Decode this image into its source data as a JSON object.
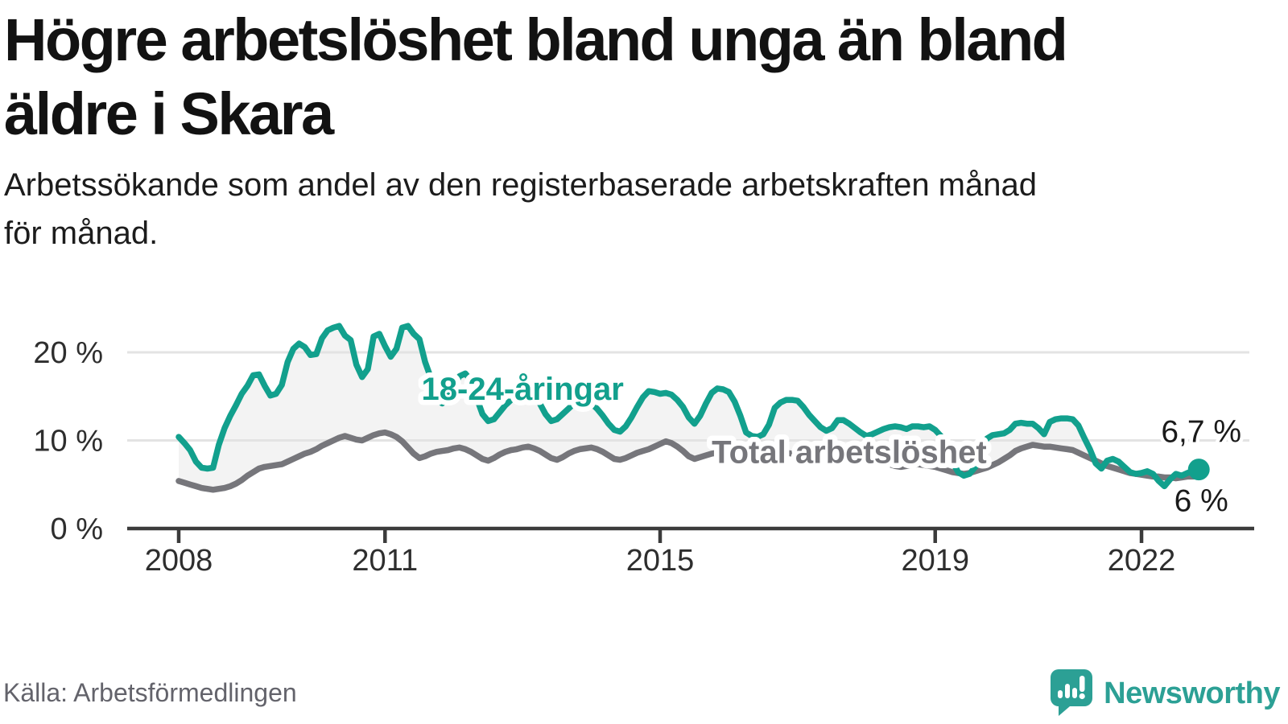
{
  "header": {
    "title_lines": [
      "Högre arbetslöshet bland unga än bland",
      "äldre i Skara"
    ],
    "subtitle_lines": [
      "Arbetssökande som andel av den registerbaserade arbetskraften månad",
      "för månad."
    ]
  },
  "footer": {
    "source": "Källa: Arbetsförmedlingen",
    "brand_name": "Newsworthy"
  },
  "chart_data": {
    "type": "line",
    "unit": "%",
    "frequency": "monthly",
    "x_start": "2008-01",
    "x_end": "2022-11",
    "grid": "horizontal-only",
    "palette": {
      "accent_teal": "#12a08d",
      "line_gray": "#76767b",
      "fill_between": "#f3f3f3"
    },
    "y_axis": {
      "ticks": [
        {
          "value": 0,
          "label": "0 %"
        },
        {
          "value": 10,
          "label": "10 %"
        },
        {
          "value": 20,
          "label": "20 %"
        }
      ],
      "range": [
        0,
        24
      ]
    },
    "x_axis": {
      "start_year": 2008,
      "ticks": [
        {
          "year": 2008,
          "label": "2008"
        },
        {
          "year": 2011,
          "label": "2011"
        },
        {
          "year": 2015,
          "label": "2015"
        },
        {
          "year": 2019,
          "label": "2019"
        },
        {
          "year": 2022,
          "label": "2022"
        }
      ]
    },
    "series": [
      {
        "name": "18-24-åringar",
        "color": "#12a08d",
        "end_marker": true,
        "values": [
          10.4,
          9.7,
          8.9,
          7.6,
          6.9,
          6.8,
          6.9,
          9.5,
          11.4,
          12.8,
          14.0,
          15.3,
          16.2,
          17.4,
          17.5,
          16.2,
          15.1,
          15.3,
          16.3,
          18.9,
          20.4,
          21.0,
          20.6,
          19.7,
          19.8,
          21.6,
          22.5,
          22.8,
          23.0,
          21.9,
          21.4,
          18.6,
          17.2,
          18.1,
          21.8,
          22.1,
          20.7,
          19.5,
          20.4,
          22.8,
          23.0,
          22.1,
          21.5,
          18.9,
          17.1,
          14.6,
          14.2,
          15.2,
          16.2,
          17.3,
          17.6,
          16.8,
          14.8,
          13.0,
          12.2,
          12.4,
          13.2,
          14.0,
          14.6,
          15.2,
          15.6,
          15.8,
          15.2,
          14.2,
          13.0,
          12.2,
          12.4,
          13.0,
          13.6,
          14.2,
          14.6,
          14.6,
          14.2,
          13.6,
          12.8,
          11.9,
          11.2,
          11.0,
          11.6,
          12.6,
          13.8,
          14.9,
          15.6,
          15.5,
          15.3,
          15.4,
          15.2,
          14.6,
          13.8,
          12.6,
          11.9,
          12.8,
          14.2,
          15.4,
          15.9,
          15.8,
          15.5,
          14.4,
          12.8,
          10.9,
          10.5,
          10.4,
          10.7,
          11.8,
          13.7,
          14.3,
          14.6,
          14.6,
          14.5,
          13.8,
          12.9,
          12.2,
          11.5,
          11.1,
          11.4,
          12.3,
          12.3,
          11.9,
          11.4,
          10.9,
          10.5,
          10.7,
          11.0,
          11.3,
          11.5,
          11.6,
          11.5,
          11.3,
          11.6,
          11.6,
          11.5,
          11.6,
          11.2,
          10.5,
          9.2,
          7.6,
          6.4,
          6.0,
          6.2,
          7.0,
          8.8,
          10.2,
          10.6,
          10.7,
          10.8,
          11.2,
          11.9,
          12.0,
          11.9,
          11.9,
          11.4,
          10.7,
          12.1,
          12.4,
          12.5,
          12.5,
          12.4,
          11.7,
          10.3,
          9.0,
          7.4,
          6.8,
          7.7,
          7.9,
          7.6,
          7.0,
          6.4,
          6.2,
          6.3,
          6.5,
          6.2,
          5.4,
          4.8,
          5.6,
          6.2,
          6.0,
          6.3,
          6.5,
          6.7
        ]
      },
      {
        "name": "Total arbetslöshet",
        "color": "#76767b",
        "end_marker": false,
        "values": [
          5.4,
          5.2,
          5.0,
          4.8,
          4.6,
          4.5,
          4.4,
          4.5,
          4.6,
          4.8,
          5.1,
          5.5,
          6.0,
          6.4,
          6.8,
          7.0,
          7.1,
          7.2,
          7.3,
          7.6,
          7.9,
          8.2,
          8.5,
          8.7,
          9.0,
          9.4,
          9.7,
          10.0,
          10.3,
          10.5,
          10.3,
          10.1,
          10.0,
          10.3,
          10.6,
          10.8,
          10.9,
          10.7,
          10.4,
          9.9,
          9.2,
          8.5,
          8.0,
          8.2,
          8.5,
          8.7,
          8.8,
          8.9,
          9.1,
          9.2,
          9.0,
          8.7,
          8.3,
          7.9,
          7.7,
          8.0,
          8.4,
          8.7,
          8.9,
          9.0,
          9.2,
          9.3,
          9.1,
          8.8,
          8.4,
          8.0,
          7.8,
          8.1,
          8.5,
          8.8,
          9.0,
          9.1,
          9.2,
          9.0,
          8.7,
          8.3,
          7.9,
          7.8,
          8.0,
          8.3,
          8.6,
          8.8,
          9.0,
          9.3,
          9.6,
          9.9,
          9.7,
          9.3,
          8.8,
          8.2,
          7.9,
          8.1,
          8.3,
          8.5,
          8.6,
          8.7,
          8.8,
          8.9,
          8.7,
          8.5,
          8.3,
          8.2,
          8.3,
          8.4,
          8.5,
          8.6,
          8.6,
          8.5,
          8.6,
          8.7,
          8.5,
          8.3,
          8.1,
          7.9,
          7.8,
          8.0,
          8.1,
          8.2,
          8.1,
          8.0,
          8.0,
          7.9,
          7.7,
          7.5,
          7.3,
          7.1,
          7.0,
          7.1,
          7.2,
          7.3,
          7.2,
          7.1,
          7.0,
          6.8,
          6.6,
          6.4,
          6.3,
          6.2,
          6.3,
          6.5,
          6.7,
          6.9,
          7.2,
          7.5,
          7.9,
          8.3,
          8.8,
          9.1,
          9.3,
          9.5,
          9.4,
          9.3,
          9.3,
          9.2,
          9.1,
          9.0,
          8.9,
          8.6,
          8.3,
          8.0,
          7.7,
          7.4,
          7.1,
          6.9,
          6.7,
          6.5,
          6.3,
          6.2,
          6.1,
          6.0,
          5.9,
          5.9,
          5.8,
          5.8,
          5.7,
          5.8,
          5.9,
          5.9,
          6.0
        ]
      }
    ],
    "inline_labels": [
      {
        "series": 0,
        "text": "18-24-åringar",
        "month_index": 60,
        "pct": 15.9
      },
      {
        "series": 1,
        "text": "Total arbetslöshet",
        "month_index": 117,
        "pct": 8.7
      }
    ],
    "end_labels": [
      {
        "series": 0,
        "text": "6,7 %",
        "dy": -34
      },
      {
        "series": 1,
        "text": "6 %",
        "dy": 30
      }
    ]
  }
}
